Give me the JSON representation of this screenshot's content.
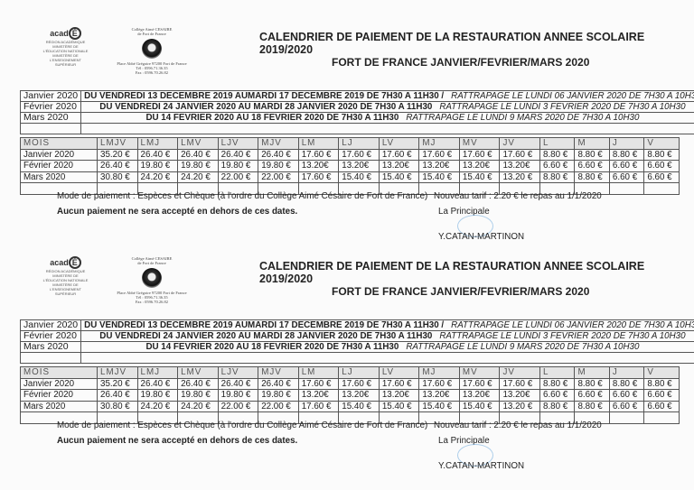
{
  "header": {
    "college_name": "Collège Aimé CESAIRE",
    "college_city": "de Fort de France",
    "college_address": "Place Abbé Grégoire 97200 Fort de France",
    "college_tel": "Tél : 0596.71.36.35",
    "college_fax": "Fax : 0596.70.26.82",
    "academie_logo": "académie Martinique",
    "title": "CALENDRIER DE PAIEMENT DE LA RESTAURATION ANNEE SCOLAIRE 2019/2020",
    "subtitle": "FORT DE FRANCE  JANVIER/FEVRIER/MARS 2020"
  },
  "dates": [
    {
      "month": "Janvier 2020",
      "period": "DU  VENDREDI 13 DECEMBRE 2019 AUMARDI 17 DECEMBRE 2019 DE 7H30 A 11H30    /",
      "catchup": "RATTRAPAGE LE LUNDI 06 JANVIER 2020 DE 7H30 A 10H30"
    },
    {
      "month": "Février 2020",
      "period": "DU VENDREDI 24 JANVIER 2020 AU MARDI 28 JANVIER 2020 DE 7H30 A 11H30",
      "catchup": "RATTRAPAGE LE LUNDI 3 FEVRIER 2020 DE 7H30 A 10H30"
    },
    {
      "month": "Mars 2020",
      "period": "DU 14 FEVRIER 2020 AU 18 FEVRIER 2020 DE 7H30 A 11H30",
      "catchup": "RATTRAPAGE LE LUNDI 9 MARS 2020 DE 7H30 A 10H30"
    }
  ],
  "prices": {
    "headers": [
      "MOIS",
      "LMJV",
      "LMJ",
      "LMV",
      "LJV",
      "MJV",
      "LM",
      "LJ",
      "LV",
      "MJ",
      "MV",
      "JV",
      "L",
      "M",
      "J",
      "V"
    ],
    "rows": [
      [
        "Janvier 2020",
        "35.20 €",
        "26.40 €",
        "26.40 €",
        "26.40 €",
        "26.40 €",
        "17.60 €",
        "17.60 €",
        "17.60 €",
        "17.60 €",
        "17.60 €",
        "17.60 €",
        "8.80 €",
        "8.80 €",
        "8.80 €",
        "8.80 €"
      ],
      [
        "Février 2020",
        "26.40 €",
        "19.80 €",
        "19.80 €",
        "19.80 €",
        "19.80 €",
        "13.20€",
        "13.20€",
        "13.20€",
        "13.20€",
        "13.20€",
        "13.20€",
        "6.60 €",
        "6.60 €",
        "6.60 €",
        "6.60 €"
      ],
      [
        "Mars 2020",
        "30.80 €",
        "24.20 €",
        "24.20 €",
        "22.00 €",
        "22.00 €",
        "17.60 €",
        "15.40 €",
        "15.40 €",
        "15.40 €",
        "15.40 €",
        "13.20 €",
        "8.80 €",
        "8.80 €",
        "6.60 €",
        "6.60 €"
      ]
    ]
  },
  "footer": {
    "payment": "Mode de paiement : Espèces et Chèque (à l'ordre du Collège Aimé Césaire de Fort de France)",
    "warning": "Aucun paiement ne sera accepté en dehors de ces dates.",
    "tarif": "Nouveau tarif : 2.20 € le repas au 1/1/2020",
    "role": "La Principale",
    "signatory": "Y.CATAN-MARTINON"
  }
}
